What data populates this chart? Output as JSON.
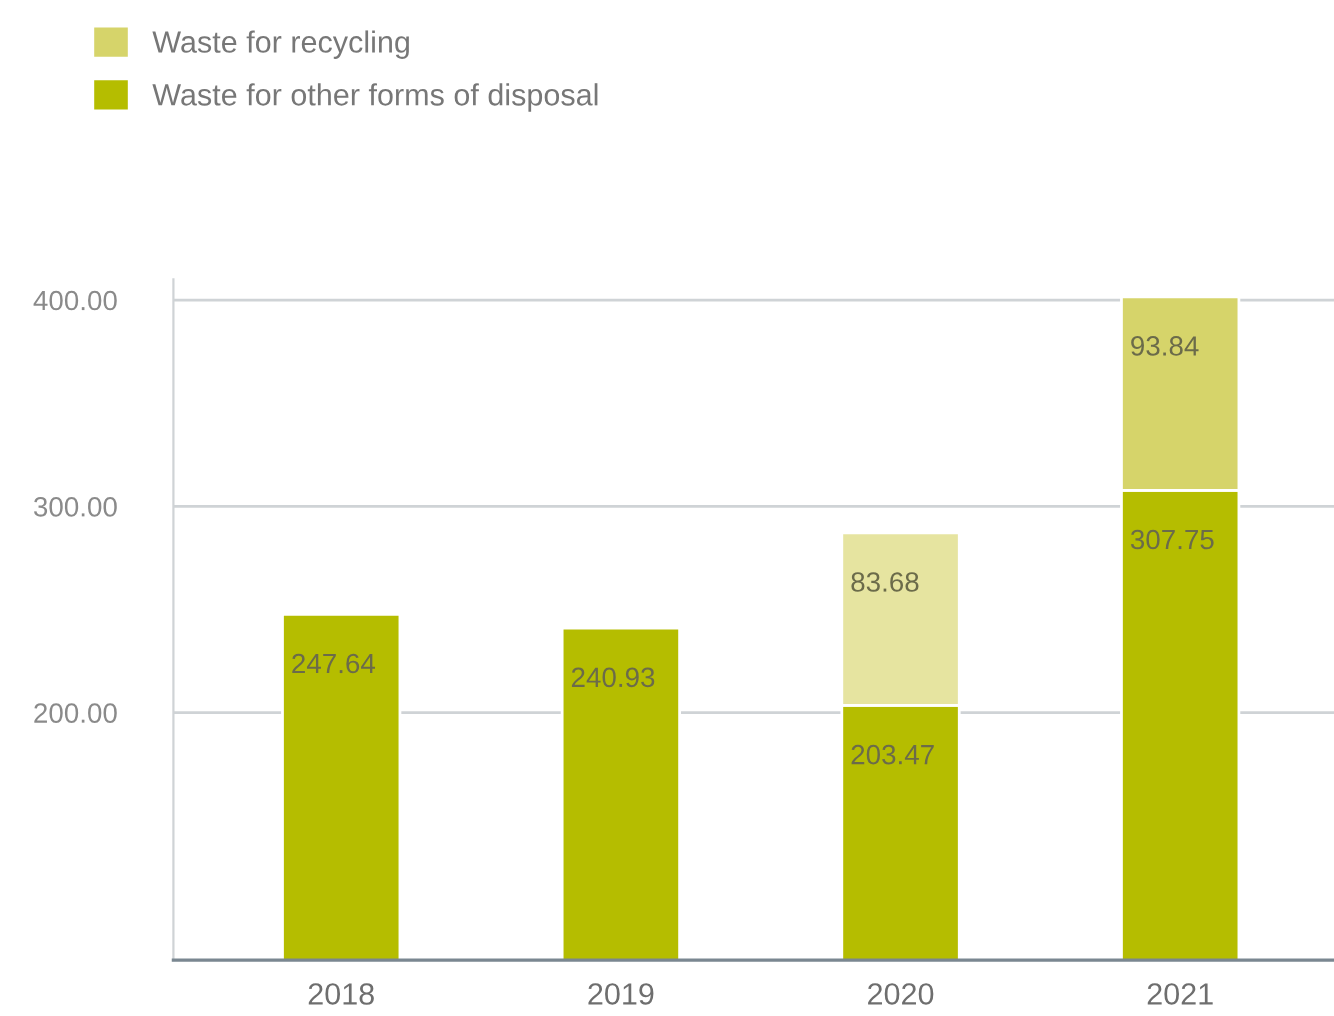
{
  "chart_data": {
    "type": "bar",
    "stacked": true,
    "categories": [
      "2018",
      "2019",
      "2020",
      "2021"
    ],
    "series": [
      {
        "name": "Waste for other forms of disposal",
        "color": "#b5bd00",
        "values": [
          247.64,
          240.93,
          203.47,
          307.75
        ]
      },
      {
        "name": "Waste for recycling",
        "color": "#d6d46a",
        "colors": [
          "#d6d46a",
          "#d6d46a",
          "#e6e4a0",
          "#d6d46a"
        ],
        "values": [
          null,
          null,
          83.68,
          93.84
        ]
      }
    ],
    "ylim": [
      80,
      410
    ],
    "yticks": [
      {
        "value": 200,
        "label": "200.00"
      },
      {
        "value": 300,
        "label": "300.00"
      },
      {
        "value": 400,
        "label": "400.00"
      }
    ],
    "grid": "y",
    "legend": "top left",
    "data_labels": true
  }
}
